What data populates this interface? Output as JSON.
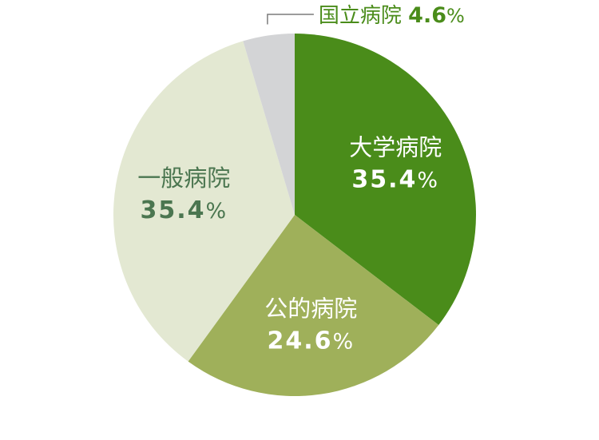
{
  "chart_data": {
    "type": "pie",
    "title": "",
    "unit": "%",
    "start_angle_deg": 0,
    "direction": "clockwise",
    "slices": [
      {
        "label": "大学病院",
        "value": 35.4,
        "value_text": "35.4",
        "pct_sign": "%",
        "color": "#4a8c1a",
        "text_color": "#ffffff",
        "label_style": "inside"
      },
      {
        "label": "公的病院",
        "value": 24.6,
        "value_text": "24.6",
        "pct_sign": "%",
        "color": "#9fb05a",
        "text_color": "#ffffff",
        "label_style": "inside"
      },
      {
        "label": "一般病院",
        "value": 35.4,
        "value_text": "35.4",
        "pct_sign": "%",
        "color": "#e3e8d2",
        "text_color": "#4b7650",
        "label_style": "inside"
      },
      {
        "label": "国立病院",
        "value": 4.6,
        "value_text": "4.6",
        "pct_sign": "%",
        "color": "#d3d4d6",
        "text_color": "#4a8c1a",
        "label_style": "callout"
      }
    ]
  }
}
